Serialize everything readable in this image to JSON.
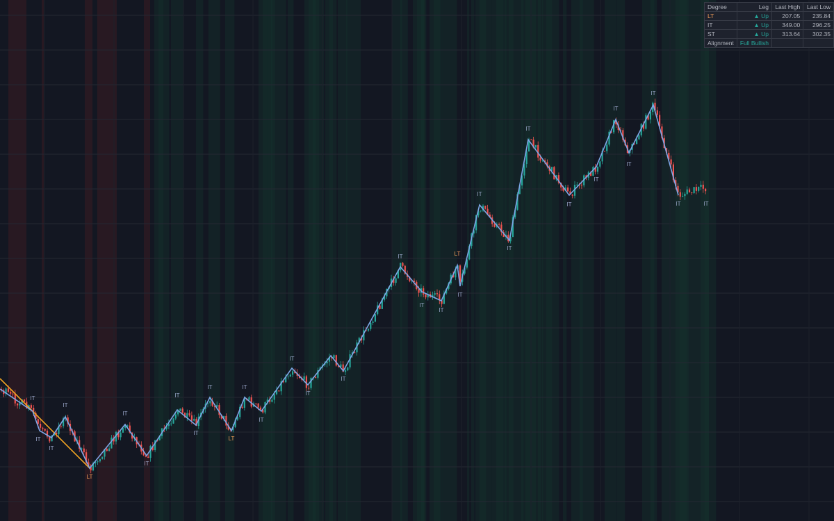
{
  "table": {
    "header": [
      "Degree",
      "Leg",
      "Last High",
      "Last Low"
    ],
    "rows": [
      [
        "LT",
        "▲ Up",
        "207.05",
        "235.84"
      ],
      [
        "IT",
        "▲ Up",
        "349.00",
        "296.25"
      ],
      [
        "ST",
        "▲ Up",
        "313.64",
        "302.35"
      ],
      [
        "Alignment",
        "Full Bullish",
        "",
        ""
      ]
    ]
  },
  "pivots": [
    "IT",
    "IT",
    "IT",
    "IT",
    "LT",
    "IT",
    "IT",
    "IT",
    "IT",
    "IT",
    "LT",
    "IT",
    "IT",
    "IT",
    "IT",
    "IT",
    "IT",
    "IT",
    "IT",
    "LT",
    "IT",
    "IT",
    "IT",
    "IT",
    "IT",
    "IT",
    "IT",
    "IT",
    "IT",
    "IT",
    "IT"
  ]
}
